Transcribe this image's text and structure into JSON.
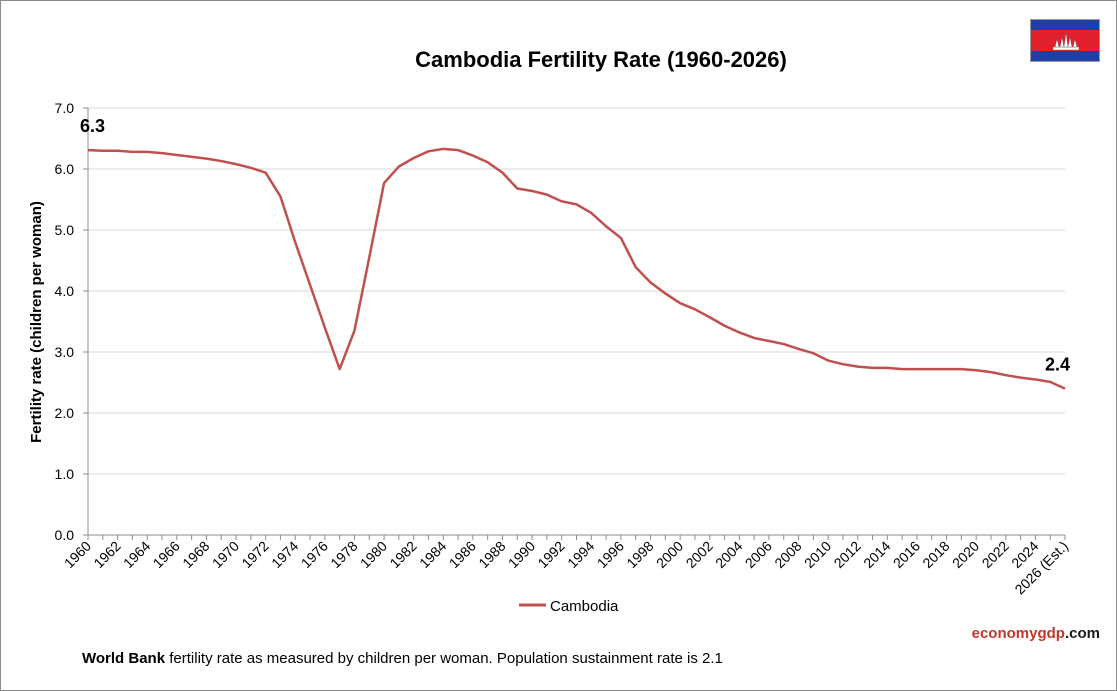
{
  "page": {
    "footnote_bold": "World Bank",
    "footnote_rest": " fertility rate as measured by children per woman.  Population  sustainment  rate is 2.1",
    "brand_part1": "economy",
    "brand_part2": "gdp",
    "brand_part3": ".com",
    "brand_colors": {
      "part1": "#c0392b",
      "part2": "#c0392b",
      "part3": "#1a1a1a"
    },
    "flag": {
      "name": "cambodia-flag-icon",
      "blue": "#1f3fa8",
      "red": "#e21f2d"
    }
  },
  "chart_data": {
    "type": "line",
    "title": "Cambodia  Fertility  Rate  (1960-2026)",
    "ylabel": "Fertility rate (children per woman)",
    "xlabel": "",
    "ylim": [
      0,
      7
    ],
    "yticks": [
      "0.0",
      "1.0",
      "2.0",
      "3.0",
      "4.0",
      "5.0",
      "6.0",
      "7.0"
    ],
    "grid": true,
    "legend_position": "bottom-center",
    "x_tick_labels": [
      "1960",
      "1962",
      "1964",
      "1966",
      "1968",
      "1970",
      "1972",
      "1974",
      "1976",
      "1978",
      "1980",
      "1982",
      "1984",
      "1986",
      "1988",
      "1990",
      "1992",
      "1994",
      "1996",
      "1998",
      "2000",
      "2002",
      "2004",
      "2006",
      "2008",
      "2010",
      "2012",
      "2014",
      "2016",
      "2018",
      "2020",
      "2022",
      "2024",
      "2026 (Est.)"
    ],
    "x": [
      1960,
      1961,
      1962,
      1963,
      1964,
      1965,
      1966,
      1967,
      1968,
      1969,
      1970,
      1971,
      1972,
      1973,
      1974,
      1975,
      1976,
      1977,
      1978,
      1979,
      1980,
      1981,
      1982,
      1983,
      1984,
      1985,
      1986,
      1987,
      1988,
      1989,
      1990,
      1991,
      1992,
      1993,
      1994,
      1995,
      1996,
      1997,
      1998,
      1999,
      2000,
      2001,
      2002,
      2003,
      2004,
      2005,
      2006,
      2007,
      2008,
      2009,
      2010,
      2011,
      2012,
      2013,
      2014,
      2015,
      2016,
      2017,
      2018,
      2019,
      2020,
      2021,
      2022,
      2023,
      2024,
      2025,
      2026
    ],
    "series": [
      {
        "name": "Cambodia",
        "color": "#c0504d",
        "values": [
          6.31,
          6.3,
          6.3,
          6.28,
          6.28,
          6.26,
          6.23,
          6.2,
          6.17,
          6.13,
          6.08,
          6.02,
          5.94,
          5.55,
          4.8,
          4.1,
          3.4,
          2.72,
          3.35,
          4.55,
          5.77,
          6.04,
          6.18,
          6.29,
          6.33,
          6.31,
          6.22,
          6.11,
          5.94,
          5.68,
          5.64,
          5.58,
          5.47,
          5.42,
          5.28,
          5.06,
          4.87,
          4.39,
          4.14,
          3.96,
          3.8,
          3.7,
          3.57,
          3.43,
          3.32,
          3.23,
          3.18,
          3.13,
          3.05,
          2.98,
          2.86,
          2.8,
          2.76,
          2.74,
          2.74,
          2.72,
          2.72,
          2.72,
          2.72,
          2.72,
          2.7,
          2.67,
          2.62,
          2.58,
          2.55,
          2.51,
          2.4
        ]
      }
    ],
    "annotations": [
      {
        "x": 1960,
        "label": "6.3"
      },
      {
        "x": 2026,
        "label": "2.4"
      }
    ]
  }
}
